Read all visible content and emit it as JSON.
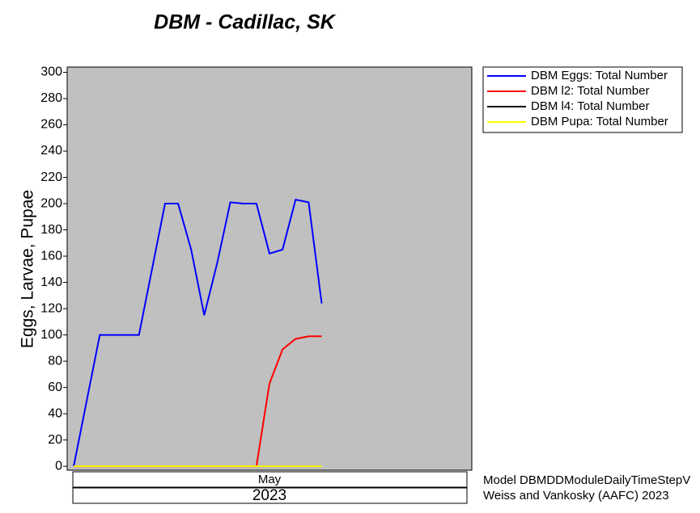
{
  "chart_data": {
    "type": "line",
    "title": "DBM - Cadillac, SK",
    "y_label": "Eggs, Larvae, Pupae",
    "month_label": "May",
    "year_label": "2023",
    "footer_lines": [
      "Model DBMDDModuleDailyTimeStepV",
      "Weiss and Vankosky (AAFC) 2023"
    ],
    "categories": [
      null,
      null,
      null,
      null,
      null,
      null,
      null,
      null,
      null,
      null,
      null,
      null,
      null,
      null,
      null,
      null,
      null,
      null,
      null,
      null,
      null,
      null,
      null,
      null,
      null,
      null,
      null,
      null,
      null,
      null,
      null
    ],
    "series": [
      {
        "name": "DBM Eggs: Total Number",
        "color": "#0000ff",
        "values": [
          0,
          50,
          100,
          100,
          100,
          100,
          150,
          200,
          200,
          165,
          115,
          155,
          201,
          200,
          200,
          162,
          165,
          203,
          201,
          124,
          null,
          null,
          null,
          null,
          null,
          null,
          null,
          null,
          null,
          null,
          null
        ]
      },
      {
        "name": "DBM l2: Total Number",
        "color": "#ff0000",
        "values": [
          0,
          0,
          0,
          0,
          0,
          0,
          0,
          0,
          0,
          0,
          0,
          0,
          0,
          0,
          0,
          63,
          89,
          97,
          99,
          99,
          null,
          null,
          null,
          null,
          null,
          null,
          null,
          null,
          null,
          null,
          null
        ]
      },
      {
        "name": "DBM l4: Total Number",
        "color": "#000000",
        "values": [
          0,
          0,
          0,
          0,
          0,
          0,
          0,
          0,
          0,
          0,
          0,
          0,
          0,
          0,
          0,
          0,
          0,
          0,
          0,
          0,
          null,
          null,
          null,
          null,
          null,
          null,
          null,
          null,
          null,
          null,
          null
        ]
      },
      {
        "name": "DBM Pupa: Total Number",
        "color": "#ffff00",
        "values": [
          0,
          0,
          0,
          0,
          0,
          0,
          0,
          0,
          0,
          0,
          0,
          0,
          0,
          0,
          0,
          0,
          0,
          0,
          0,
          0,
          null,
          null,
          null,
          null,
          null,
          null,
          null,
          null,
          null,
          null,
          null
        ]
      }
    ],
    "ylim": [
      -3,
      304
    ],
    "yticks": [
      0,
      20,
      40,
      60,
      80,
      100,
      120,
      140,
      160,
      180,
      200,
      220,
      240,
      260,
      280,
      300
    ],
    "legend": "outside-right-top"
  }
}
